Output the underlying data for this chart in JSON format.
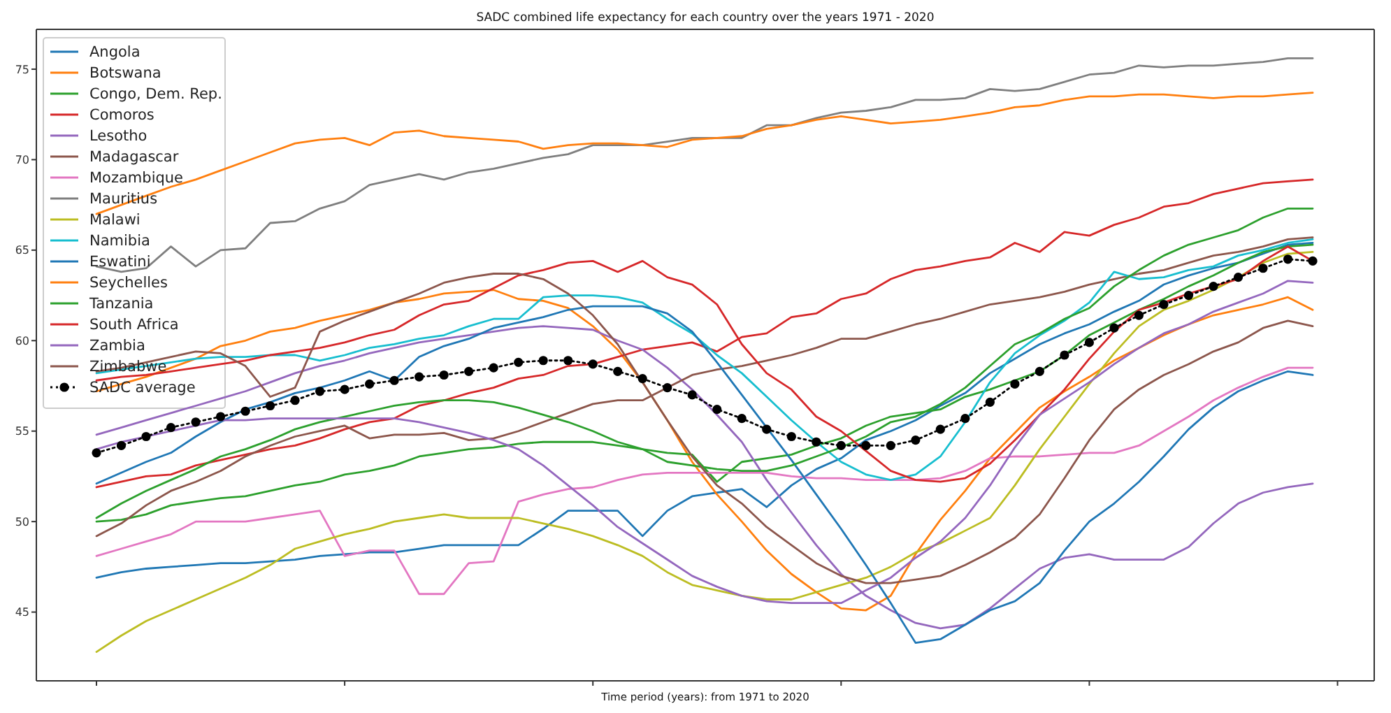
{
  "chart_data": {
    "type": "line",
    "title": "SADC combined life expectancy for each country over the years 1971 - 2020",
    "xlabel": "Time period (years): from 1971 to 2020",
    "categories": [
      null,
      null,
      null,
      null,
      null,
      null,
      null,
      null,
      null,
      null,
      null,
      null,
      null,
      null,
      null,
      null,
      null,
      null,
      null,
      null,
      null,
      null,
      null,
      null,
      null,
      null,
      null,
      null,
      null,
      null,
      null,
      null,
      null,
      null,
      null,
      null,
      null,
      null,
      null,
      null,
      null,
      null,
      null,
      null,
      null,
      null,
      null,
      null,
      null,
      null
    ],
    "ylim": [
      41.2,
      77.2
    ],
    "yticks": [
      45,
      50,
      55,
      60,
      65,
      70,
      75
    ],
    "tick_labels": "y",
    "legend": "top left",
    "series": [
      {
        "name": "Angola",
        "color": "#1f77b4",
        "values": [
          46.9,
          47.2,
          47.4,
          47.5,
          47.6,
          47.7,
          47.7,
          47.8,
          47.9,
          48.1,
          48.2,
          48.3,
          48.3,
          48.5,
          48.7,
          48.7,
          48.7,
          48.7,
          49.6,
          50.6,
          50.6,
          50.6,
          49.2,
          50.6,
          51.4,
          51.6,
          51.8,
          50.8,
          52.0,
          52.9,
          53.5,
          54.5,
          55.0,
          55.6,
          56.4,
          57.1,
          58.2,
          59.0,
          59.8,
          60.4,
          60.9,
          61.6,
          62.2,
          63.1,
          63.6,
          64.0,
          64.3,
          64.8,
          65.3,
          65.4
        ]
      },
      {
        "name": "Botswana",
        "color": "#ff7f0e",
        "values": [
          57.2,
          57.6,
          58.0,
          58.5,
          59.0,
          59.7,
          60.0,
          60.5,
          60.7,
          61.1,
          61.4,
          61.7,
          62.1,
          62.3,
          62.6,
          62.7,
          62.8,
          62.3,
          62.2,
          61.8,
          60.8,
          59.5,
          57.7,
          55.6,
          53.3,
          51.5,
          50.0,
          48.4,
          47.1,
          46.1,
          45.2,
          45.1,
          45.9,
          48.2,
          50.1,
          51.7,
          53.5,
          54.9,
          56.3,
          57.2,
          58.0,
          58.9,
          59.6,
          60.3,
          60.9,
          61.4,
          61.7,
          62.0,
          62.4,
          61.7
        ]
      },
      {
        "name": "Congo, Dem. Rep.",
        "color": "#2ca02c",
        "values": [
          50.0,
          50.1,
          50.4,
          50.9,
          51.1,
          51.3,
          51.4,
          51.7,
          52.0,
          52.2,
          52.6,
          52.8,
          53.1,
          53.6,
          53.8,
          54.0,
          54.1,
          54.3,
          54.4,
          54.4,
          54.4,
          54.2,
          54.0,
          53.8,
          53.7,
          52.2,
          53.3,
          53.5,
          53.7,
          54.2,
          54.6,
          55.3,
          55.8,
          56.0,
          56.2,
          56.9,
          57.3,
          57.8,
          58.3,
          59.2,
          60.3,
          61.0,
          61.7,
          62.3,
          63.0,
          63.6,
          64.3,
          64.9,
          65.2,
          65.3
        ]
      },
      {
        "name": "Comoros",
        "color": "#d62728",
        "values": [
          51.9,
          52.2,
          52.5,
          52.6,
          53.1,
          53.4,
          53.7,
          54.0,
          54.2,
          54.6,
          55.1,
          55.5,
          55.7,
          56.4,
          56.7,
          57.1,
          57.4,
          57.9,
          58.1,
          58.6,
          58.7,
          59.1,
          59.5,
          59.7,
          59.9,
          59.4,
          60.2,
          60.4,
          61.3,
          61.5,
          62.3,
          62.6,
          63.4,
          63.9,
          64.1,
          64.4,
          64.6,
          65.4,
          64.9,
          66.0,
          65.8,
          66.4,
          66.8,
          67.4,
          67.6,
          68.1,
          68.4,
          68.7,
          68.8,
          68.9
        ]
      },
      {
        "name": "Lesotho",
        "color": "#9467bd",
        "values": [
          54.8,
          55.2,
          55.6,
          56.0,
          56.4,
          56.8,
          57.2,
          57.7,
          58.2,
          58.6,
          58.9,
          59.3,
          59.6,
          59.9,
          60.1,
          60.3,
          60.5,
          60.7,
          60.8,
          60.7,
          60.6,
          60.0,
          59.5,
          58.5,
          57.3,
          55.9,
          54.4,
          52.3,
          50.5,
          48.7,
          47.1,
          45.9,
          45.1,
          44.4,
          44.1,
          44.3,
          45.2,
          46.3,
          47.4,
          48.0,
          48.2,
          47.9,
          47.9,
          47.9,
          48.6,
          49.9,
          51.0,
          51.6,
          51.9,
          52.1
        ]
      },
      {
        "name": "Madagascar",
        "color": "#8c564b",
        "values": [
          49.2,
          49.9,
          50.9,
          51.7,
          52.2,
          52.8,
          53.6,
          54.2,
          54.7,
          55.0,
          55.3,
          54.6,
          54.8,
          54.8,
          54.9,
          54.5,
          54.6,
          55.0,
          55.5,
          56.0,
          56.5,
          56.7,
          56.7,
          57.4,
          58.1,
          58.4,
          58.6,
          58.9,
          59.2,
          59.6,
          60.1,
          60.1,
          60.5,
          60.9,
          61.2,
          61.6,
          62.0,
          62.2,
          62.4,
          62.7,
          63.1,
          63.4,
          63.7,
          63.9,
          64.3,
          64.7,
          64.9,
          65.2,
          65.6,
          65.7
        ]
      },
      {
        "name": "Mozambique",
        "color": "#e377c2",
        "values": [
          48.1,
          48.5,
          48.9,
          49.3,
          50.0,
          50.0,
          50.0,
          50.2,
          50.4,
          50.6,
          48.1,
          48.4,
          48.4,
          46.0,
          46.0,
          47.7,
          47.8,
          51.1,
          51.5,
          51.8,
          51.9,
          52.3,
          52.6,
          52.7,
          52.7,
          52.7,
          52.7,
          52.7,
          52.5,
          52.4,
          52.4,
          52.3,
          52.3,
          52.3,
          52.4,
          52.8,
          53.5,
          53.6,
          53.6,
          53.7,
          53.8,
          53.8,
          54.2,
          55.0,
          55.8,
          56.7,
          57.4,
          58.0,
          58.5,
          58.5
        ]
      },
      {
        "name": "Mauritius",
        "color": "#7f7f7f",
        "values": [
          64.1,
          63.8,
          64.0,
          65.2,
          64.1,
          65.0,
          65.1,
          66.5,
          66.6,
          67.3,
          67.7,
          68.6,
          68.9,
          69.2,
          68.9,
          69.3,
          69.5,
          69.8,
          70.1,
          70.3,
          70.8,
          70.8,
          70.8,
          71.0,
          71.2,
          71.2,
          71.2,
          71.9,
          71.9,
          72.3,
          72.6,
          72.7,
          72.9,
          73.3,
          73.3,
          73.4,
          73.9,
          73.8,
          73.9,
          74.3,
          74.7,
          74.8,
          75.2,
          75.1,
          75.2,
          75.2,
          75.3,
          75.4,
          75.6,
          75.6
        ]
      },
      {
        "name": "Malawi",
        "color": "#bcbd22",
        "values": [
          42.8,
          43.7,
          44.5,
          45.1,
          45.7,
          46.3,
          46.9,
          47.6,
          48.5,
          48.9,
          49.3,
          49.6,
          50.0,
          50.2,
          50.4,
          50.2,
          50.2,
          50.2,
          49.9,
          49.6,
          49.2,
          48.7,
          48.1,
          47.2,
          46.5,
          46.2,
          45.9,
          45.7,
          45.7,
          46.1,
          46.5,
          46.9,
          47.5,
          48.3,
          48.8,
          49.5,
          50.2,
          52.0,
          54.0,
          55.8,
          57.6,
          59.3,
          60.8,
          61.7,
          62.2,
          62.8,
          63.5,
          64.3,
          64.8,
          64.9
        ]
      },
      {
        "name": "Namibia",
        "color": "#17becf",
        "values": [
          58.2,
          58.4,
          58.6,
          58.8,
          59.0,
          59.1,
          59.1,
          59.2,
          59.2,
          58.9,
          59.2,
          59.6,
          59.8,
          60.1,
          60.3,
          60.8,
          61.2,
          61.2,
          62.4,
          62.5,
          62.5,
          62.4,
          62.1,
          61.2,
          60.4,
          59.2,
          58.2,
          56.9,
          55.6,
          54.4,
          53.3,
          52.6,
          52.3,
          52.6,
          53.6,
          55.5,
          57.7,
          59.3,
          60.3,
          61.1,
          62.1,
          63.8,
          63.4,
          63.5,
          63.9,
          64.1,
          64.7,
          65.0,
          65.4,
          65.6
        ]
      },
      {
        "name": "Eswatini",
        "color": "#1f77b5",
        "values": [
          52.1,
          52.7,
          53.3,
          53.8,
          54.7,
          55.5,
          56.2,
          56.6,
          57.1,
          57.4,
          57.8,
          58.3,
          57.8,
          59.1,
          59.7,
          60.1,
          60.7,
          61.0,
          61.3,
          61.7,
          61.9,
          61.9,
          61.9,
          61.5,
          60.5,
          58.8,
          57.0,
          55.2,
          53.4,
          51.5,
          49.6,
          47.6,
          45.5,
          43.3,
          43.5,
          44.3,
          45.1,
          45.6,
          46.6,
          48.4,
          50.0,
          51.0,
          52.2,
          53.6,
          55.1,
          56.3,
          57.2,
          57.8,
          58.3,
          58.1
        ]
      },
      {
        "name": "Seychelles",
        "color": "#ff7f0f",
        "values": [
          67.0,
          67.5,
          68.0,
          68.5,
          68.9,
          69.4,
          69.9,
          70.4,
          70.9,
          71.1,
          71.2,
          70.8,
          71.5,
          71.6,
          71.3,
          71.2,
          71.1,
          71.0,
          70.6,
          70.8,
          70.9,
          70.9,
          70.8,
          70.7,
          71.1,
          71.2,
          71.3,
          71.7,
          71.9,
          72.2,
          72.4,
          72.2,
          72.0,
          72.1,
          72.2,
          72.4,
          72.6,
          72.9,
          73.0,
          73.3,
          73.5,
          73.5,
          73.6,
          73.6,
          73.5,
          73.4,
          73.5,
          73.5,
          73.6,
          73.7
        ]
      },
      {
        "name": "Tanzania",
        "color": "#2ca02d",
        "values": [
          50.2,
          51.0,
          51.7,
          52.3,
          52.9,
          53.6,
          54.0,
          54.5,
          55.1,
          55.5,
          55.8,
          56.1,
          56.4,
          56.6,
          56.7,
          56.7,
          56.6,
          56.3,
          55.9,
          55.5,
          55.0,
          54.4,
          54.0,
          53.3,
          53.1,
          52.9,
          52.8,
          52.8,
          53.1,
          53.6,
          54.1,
          54.7,
          55.5,
          55.8,
          56.5,
          57.4,
          58.6,
          59.8,
          60.4,
          61.2,
          61.8,
          63.0,
          63.9,
          64.7,
          65.3,
          65.7,
          66.1,
          66.8,
          67.3,
          67.3
        ]
      },
      {
        "name": "South Africa",
        "color": "#d62729",
        "values": [
          57.8,
          58.0,
          58.1,
          58.3,
          58.5,
          58.7,
          58.9,
          59.2,
          59.4,
          59.6,
          59.9,
          60.3,
          60.6,
          61.4,
          62.0,
          62.2,
          62.9,
          63.6,
          63.9,
          64.3,
          64.4,
          63.8,
          64.4,
          63.5,
          63.1,
          62.0,
          59.8,
          58.2,
          57.3,
          55.8,
          55.0,
          53.9,
          52.8,
          52.3,
          52.2,
          52.4,
          53.2,
          54.5,
          55.9,
          57.3,
          59.0,
          60.5,
          61.7,
          62.1,
          62.6,
          63.0,
          63.4,
          64.4,
          65.2,
          64.4
        ]
      },
      {
        "name": "Zambia",
        "color": "#9467be",
        "values": [
          54.0,
          54.4,
          54.7,
          55.0,
          55.3,
          55.6,
          55.6,
          55.7,
          55.7,
          55.7,
          55.7,
          55.7,
          55.7,
          55.5,
          55.2,
          54.9,
          54.5,
          54.0,
          53.1,
          52.0,
          50.9,
          49.7,
          48.8,
          47.9,
          47.0,
          46.4,
          45.9,
          45.6,
          45.5,
          45.5,
          45.5,
          46.2,
          46.9,
          48.0,
          48.9,
          50.2,
          52.0,
          54.1,
          55.9,
          56.8,
          57.7,
          58.7,
          59.6,
          60.4,
          60.9,
          61.6,
          62.1,
          62.6,
          63.3,
          63.2
        ]
      },
      {
        "name": "Zimbabwe",
        "color": "#8c564c",
        "values": [
          58.3,
          58.5,
          58.8,
          59.1,
          59.4,
          59.3,
          58.6,
          56.9,
          57.4,
          60.5,
          61.1,
          61.6,
          62.1,
          62.6,
          63.2,
          63.5,
          63.7,
          63.7,
          63.4,
          62.6,
          61.4,
          59.8,
          57.7,
          55.6,
          53.6,
          52.0,
          51.0,
          49.7,
          48.7,
          47.7,
          47.0,
          46.6,
          46.6,
          46.8,
          47.0,
          47.6,
          48.3,
          49.1,
          50.4,
          52.4,
          54.5,
          56.2,
          57.3,
          58.1,
          58.7,
          59.4,
          59.9,
          60.7,
          61.1,
          60.8
        ]
      },
      {
        "name": "SADC average",
        "color": "#000000",
        "marker": "circle",
        "line_style": "dotted",
        "values": [
          53.8,
          54.2,
          54.7,
          55.2,
          55.5,
          55.8,
          56.1,
          56.4,
          56.7,
          57.2,
          57.3,
          57.6,
          57.8,
          58.0,
          58.1,
          58.3,
          58.5,
          58.8,
          58.9,
          58.9,
          58.7,
          58.3,
          57.9,
          57.4,
          57.0,
          56.2,
          55.7,
          55.1,
          54.7,
          54.4,
          54.2,
          54.2,
          54.2,
          54.5,
          55.1,
          55.7,
          56.6,
          57.6,
          58.3,
          59.2,
          59.9,
          60.7,
          61.4,
          62.0,
          62.5,
          63.0,
          63.5,
          64.0,
          64.5,
          64.4
        ]
      }
    ]
  }
}
